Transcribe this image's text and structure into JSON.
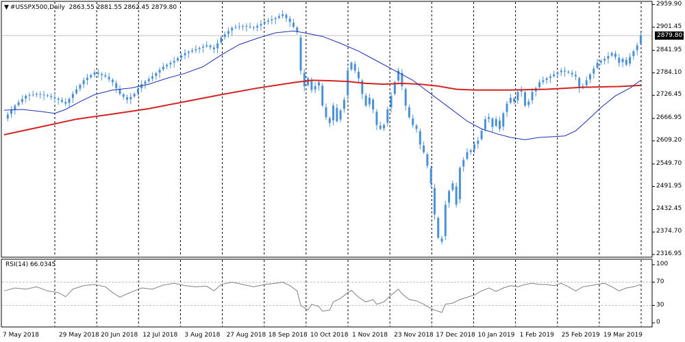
{
  "chart_data": [
    {
      "type": "candlestick",
      "title": "#USSPX500,Daily",
      "ohlc_label": "2863.55 2881.55 2862.45 2879.80",
      "current_price_label": "2879.80",
      "price_axis_ticks": [
        "2959.90",
        "2901.45",
        "2841.95",
        "2784.10",
        "2726.45",
        "2666.95",
        "2609.20",
        "2549.70",
        "2491.95",
        "2432.45",
        "2374.70",
        "2316.95"
      ],
      "price_axis_values": [
        2959.9,
        2901.45,
        2841.95,
        2784.1,
        2726.45,
        2666.95,
        2609.2,
        2549.7,
        2491.95,
        2432.45,
        2374.7,
        2316.95
      ],
      "ylim": [
        2310,
        2968
      ],
      "date_ticks": [
        "7 May 2018",
        "29 May 2018",
        "20 Jun 2018",
        "12 Jul 2018",
        "3 Aug 2018",
        "27 Aug 2018",
        "18 Sep 2018",
        "10 Oct 2018",
        "1 Nov 2018",
        "23 Nov 2018",
        "17 Dec 2018",
        "10 Jan 2019",
        "1 Feb 2019",
        "25 Feb 2019",
        "19 Mar 2019"
      ],
      "close_path": [
        [
          0,
          2665
        ],
        [
          3,
          2700
        ],
        [
          6,
          2725
        ],
        [
          9,
          2730
        ],
        [
          12,
          2725
        ],
        [
          15,
          2715
        ],
        [
          17,
          2705
        ],
        [
          19,
          2730
        ],
        [
          22,
          2765
        ],
        [
          25,
          2785
        ],
        [
          28,
          2775
        ],
        [
          30,
          2760
        ],
        [
          32,
          2730
        ],
        [
          34,
          2715
        ],
        [
          36,
          2730
        ],
        [
          38,
          2755
        ],
        [
          41,
          2775
        ],
        [
          44,
          2800
        ],
        [
          47,
          2815
        ],
        [
          50,
          2835
        ],
        [
          53,
          2845
        ],
        [
          56,
          2855
        ],
        [
          58,
          2845
        ],
        [
          60,
          2875
        ],
        [
          63,
          2900
        ],
        [
          66,
          2905
        ],
        [
          69,
          2900
        ],
        [
          72,
          2915
        ],
        [
          75,
          2925
        ],
        [
          77,
          2935
        ],
        [
          79,
          2915
        ],
        [
          81,
          2890
        ],
        [
          82,
          2790
        ],
        [
          83,
          2750
        ],
        [
          84,
          2770
        ],
        [
          85,
          2740
        ],
        [
          87,
          2760
        ],
        [
          88,
          2700
        ],
        [
          89,
          2670
        ],
        [
          90,
          2655
        ],
        [
          91,
          2700
        ],
        [
          92,
          2660
        ],
        [
          94,
          2715
        ],
        [
          95,
          2790
        ],
        [
          96,
          2810
        ],
        [
          98,
          2770
        ],
        [
          99,
          2730
        ],
        [
          100,
          2700
        ],
        [
          101,
          2720
        ],
        [
          102,
          2690
        ],
        [
          103,
          2650
        ],
        [
          104,
          2640
        ],
        [
          105,
          2650
        ],
        [
          106,
          2690
        ],
        [
          107,
          2725
        ],
        [
          108,
          2760
        ],
        [
          109,
          2790
        ],
        [
          110,
          2750
        ],
        [
          111,
          2700
        ],
        [
          112,
          2670
        ],
        [
          113,
          2650
        ],
        [
          114,
          2640
        ],
        [
          115,
          2600
        ],
        [
          116,
          2580
        ],
        [
          117,
          2545
        ],
        [
          118,
          2500
        ],
        [
          119,
          2420
        ],
        [
          120,
          2360
        ],
        [
          121,
          2350
        ],
        [
          122,
          2445
        ],
        [
          123,
          2480
        ],
        [
          124,
          2500
        ],
        [
          125,
          2445
        ],
        [
          126,
          2540
        ],
        [
          127,
          2560
        ],
        [
          128,
          2580
        ],
        [
          129,
          2585
        ],
        [
          130,
          2600
        ],
        [
          131,
          2610
        ],
        [
          132,
          2635
        ],
        [
          133,
          2665
        ],
        [
          134,
          2670
        ],
        [
          135,
          2645
        ],
        [
          136,
          2665
        ],
        [
          137,
          2640
        ],
        [
          138,
          2680
        ],
        [
          139,
          2705
        ],
        [
          140,
          2720
        ],
        [
          141,
          2710
        ],
        [
          142,
          2735
        ],
        [
          143,
          2740
        ],
        [
          144,
          2700
        ],
        [
          145,
          2710
        ],
        [
          146,
          2735
        ],
        [
          147,
          2745
        ],
        [
          148,
          2760
        ],
        [
          150,
          2770
        ],
        [
          152,
          2780
        ],
        [
          154,
          2790
        ],
        [
          156,
          2785
        ],
        [
          158,
          2775
        ],
        [
          159,
          2745
        ],
        [
          160,
          2750
        ],
        [
          162,
          2780
        ],
        [
          164,
          2810
        ],
        [
          166,
          2820
        ],
        [
          168,
          2835
        ],
        [
          169,
          2825
        ],
        [
          170,
          2810
        ],
        [
          171,
          2820
        ],
        [
          172,
          2805
        ],
        [
          173,
          2825
        ],
        [
          174,
          2840
        ],
        [
          175,
          2855
        ],
        [
          176,
          2880
        ]
      ],
      "ma_fast_path": [
        [
          0,
          2688
        ],
        [
          5,
          2690
        ],
        [
          10,
          2685
        ],
        [
          14,
          2680
        ],
        [
          17,
          2690
        ],
        [
          21,
          2710
        ],
        [
          25,
          2728
        ],
        [
          30,
          2740
        ],
        [
          35,
          2745
        ],
        [
          40,
          2755
        ],
        [
          45,
          2770
        ],
        [
          50,
          2783
        ],
        [
          55,
          2800
        ],
        [
          60,
          2830
        ],
        [
          65,
          2857
        ],
        [
          70,
          2873
        ],
        [
          75,
          2887
        ],
        [
          80,
          2892
        ],
        [
          83,
          2887
        ],
        [
          88,
          2878
        ],
        [
          93,
          2860
        ],
        [
          98,
          2840
        ],
        [
          103,
          2815
        ],
        [
          108,
          2790
        ],
        [
          113,
          2765
        ],
        [
          118,
          2730
        ],
        [
          123,
          2695
        ],
        [
          128,
          2660
        ],
        [
          132,
          2640
        ],
        [
          136,
          2628
        ],
        [
          140,
          2618
        ],
        [
          144,
          2612
        ],
        [
          148,
          2618
        ],
        [
          152,
          2620
        ],
        [
          155,
          2622
        ],
        [
          158,
          2635
        ],
        [
          161,
          2660
        ],
        [
          165,
          2695
        ],
        [
          169,
          2725
        ],
        [
          173,
          2745
        ],
        [
          176,
          2765
        ]
      ],
      "ma_slow_path": [
        [
          0,
          2625
        ],
        [
          10,
          2645
        ],
        [
          20,
          2665
        ],
        [
          30,
          2678
        ],
        [
          40,
          2692
        ],
        [
          50,
          2710
        ],
        [
          60,
          2728
        ],
        [
          70,
          2745
        ],
        [
          80,
          2759
        ],
        [
          85,
          2765
        ],
        [
          90,
          2764
        ],
        [
          95,
          2762
        ],
        [
          100,
          2757
        ],
        [
          105,
          2755
        ],
        [
          110,
          2757
        ],
        [
          115,
          2755
        ],
        [
          120,
          2750
        ],
        [
          125,
          2742
        ],
        [
          130,
          2740
        ],
        [
          140,
          2740
        ],
        [
          150,
          2742
        ],
        [
          160,
          2747
        ],
        [
          170,
          2749
        ],
        [
          176,
          2752
        ]
      ],
      "x_domain": [
        0,
        178
      ]
    },
    {
      "type": "line",
      "title": "RSI(14) 66.0345",
      "indicator_label": "RSI(14)",
      "indicator_value": "66.0345",
      "ylim": [
        0,
        100
      ],
      "y_ticks": [
        "100",
        "70",
        "30",
        "0"
      ],
      "y_tick_values": [
        100,
        70,
        30,
        0
      ],
      "levels": [
        70,
        30
      ],
      "rsi_path": [
        [
          0,
          55
        ],
        [
          3,
          60
        ],
        [
          6,
          58
        ],
        [
          9,
          62
        ],
        [
          12,
          55
        ],
        [
          15,
          52
        ],
        [
          17,
          45
        ],
        [
          19,
          58
        ],
        [
          22,
          64
        ],
        [
          25,
          66
        ],
        [
          28,
          62
        ],
        [
          30,
          52
        ],
        [
          32,
          44
        ],
        [
          34,
          50
        ],
        [
          36,
          55
        ],
        [
          38,
          60
        ],
        [
          41,
          58
        ],
        [
          44,
          65
        ],
        [
          47,
          68
        ],
        [
          50,
          64
        ],
        [
          53,
          62
        ],
        [
          56,
          63
        ],
        [
          58,
          55
        ],
        [
          60,
          66
        ],
        [
          63,
          70
        ],
        [
          66,
          66
        ],
        [
          69,
          62
        ],
        [
          72,
          66
        ],
        [
          75,
          68
        ],
        [
          77,
          70
        ],
        [
          79,
          64
        ],
        [
          81,
          55
        ],
        [
          82,
          30
        ],
        [
          84,
          22
        ],
        [
          85,
          32
        ],
        [
          87,
          28
        ],
        [
          88,
          20
        ],
        [
          90,
          22
        ],
        [
          91,
          36
        ],
        [
          93,
          42
        ],
        [
          95,
          52
        ],
        [
          96,
          56
        ],
        [
          98,
          44
        ],
        [
          100,
          36
        ],
        [
          102,
          40
        ],
        [
          103,
          32
        ],
        [
          105,
          36
        ],
        [
          107,
          48
        ],
        [
          109,
          58
        ],
        [
          110,
          50
        ],
        [
          112,
          40
        ],
        [
          114,
          38
        ],
        [
          116,
          32
        ],
        [
          117,
          28
        ],
        [
          119,
          22
        ],
        [
          121,
          18
        ],
        [
          122,
          32
        ],
        [
          124,
          34
        ],
        [
          126,
          40
        ],
        [
          128,
          44
        ],
        [
          130,
          48
        ],
        [
          132,
          55
        ],
        [
          134,
          60
        ],
        [
          136,
          54
        ],
        [
          138,
          60
        ],
        [
          140,
          64
        ],
        [
          142,
          62
        ],
        [
          144,
          66
        ],
        [
          146,
          68
        ],
        [
          148,
          66
        ],
        [
          150,
          66
        ],
        [
          152,
          64
        ],
        [
          154,
          68
        ],
        [
          156,
          62
        ],
        [
          158,
          55
        ],
        [
          160,
          62
        ],
        [
          162,
          64
        ],
        [
          164,
          66
        ],
        [
          166,
          68
        ],
        [
          168,
          62
        ],
        [
          170,
          55
        ],
        [
          172,
          60
        ],
        [
          174,
          62
        ],
        [
          176,
          66
        ]
      ]
    }
  ],
  "colors": {
    "background": "#ffffff",
    "candles": "#4a90d9",
    "ma_fast": "#1a2db5",
    "ma_slow": "#d42222",
    "rsi_line": "#808080",
    "grid_vertical": "#000000",
    "level_lines": "#c0c0c0",
    "price_badge_bg": "#000000",
    "price_badge_fg": "#ffffff"
  }
}
